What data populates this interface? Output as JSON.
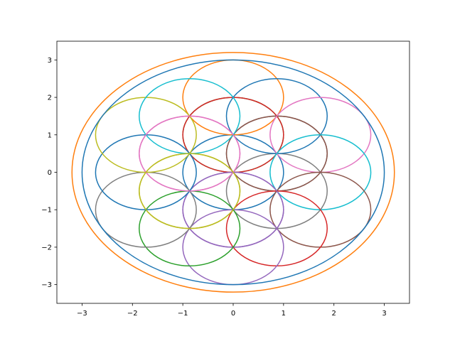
{
  "chart_data": {
    "type": "line",
    "title": "",
    "xlabel": "",
    "ylabel": "",
    "xlim": [
      -3.5,
      3.5
    ],
    "ylim": [
      -3.5,
      3.5
    ],
    "grid": false,
    "legend": "none",
    "x_ticks": [
      -3,
      -2,
      -1,
      0,
      1,
      2,
      3
    ],
    "y_ticks": [
      -3,
      -2,
      -1,
      0,
      1,
      2,
      3
    ],
    "x_tick_labels": [
      "−3",
      "−2",
      "−1",
      "0",
      "1",
      "2",
      "3"
    ],
    "y_tick_labels": [
      "−3",
      "−2",
      "−1",
      "0",
      "1",
      "2",
      "3"
    ],
    "series": [
      {
        "shape": "circle",
        "cx": 0,
        "cy": 0,
        "r": 1,
        "color": "#1f77b4"
      },
      {
        "shape": "circle",
        "cx": 0,
        "cy": 1,
        "r": 1,
        "color": "#2ca02c"
      },
      {
        "shape": "circle",
        "cx": 0.866,
        "cy": 0.5,
        "r": 1,
        "color": "#7f7f7f"
      },
      {
        "shape": "circle",
        "cx": 0.866,
        "cy": -0.5,
        "r": 1,
        "color": "#7f7f7f"
      },
      {
        "shape": "circle",
        "cx": 0,
        "cy": -1,
        "r": 1,
        "color": "#9467bd"
      },
      {
        "shape": "circle",
        "cx": -0.866,
        "cy": -0.5,
        "r": 1,
        "color": "#bcbd22"
      },
      {
        "shape": "circle",
        "cx": -0.866,
        "cy": 0.5,
        "r": 1,
        "color": "#e377c2"
      },
      {
        "shape": "circle",
        "cx": 0,
        "cy": 2,
        "r": 1,
        "color": "#ff7f0e"
      },
      {
        "shape": "circle",
        "cx": 0,
        "cy": 1,
        "r": 1,
        "color": "#d62728"
      },
      {
        "shape": "circle",
        "cx": 0.866,
        "cy": 1.5,
        "r": 1,
        "color": "#1f77b4"
      },
      {
        "shape": "circle",
        "cx": 0.866,
        "cy": 0.5,
        "r": 1,
        "color": "#8c564b"
      },
      {
        "shape": "circle",
        "cx": 1.732,
        "cy": 1,
        "r": 1,
        "color": "#e377c2"
      },
      {
        "shape": "circle",
        "cx": 1.732,
        "cy": 0,
        "r": 1,
        "color": "#17becf"
      },
      {
        "shape": "circle",
        "cx": 1.732,
        "cy": -1,
        "r": 1,
        "color": "#8c564b"
      },
      {
        "shape": "circle",
        "cx": 0.866,
        "cy": -1.5,
        "r": 1,
        "color": "#d62728"
      },
      {
        "shape": "circle",
        "cx": 0,
        "cy": -2,
        "r": 1,
        "color": "#9467bd"
      },
      {
        "shape": "circle",
        "cx": 0,
        "cy": -1,
        "r": 1,
        "color": "#9467bd"
      },
      {
        "shape": "circle",
        "cx": -0.866,
        "cy": -1.5,
        "r": 1,
        "color": "#2ca02c"
      },
      {
        "shape": "circle",
        "cx": -1.732,
        "cy": -1,
        "r": 1,
        "color": "#7f7f7f"
      },
      {
        "shape": "circle",
        "cx": -1.732,
        "cy": 0,
        "r": 1,
        "color": "#1f77b4"
      },
      {
        "shape": "circle",
        "cx": -1.732,
        "cy": 1,
        "r": 1,
        "color": "#bcbd22"
      },
      {
        "shape": "circle",
        "cx": -0.866,
        "cy": 1.5,
        "r": 1,
        "color": "#17becf"
      },
      {
        "shape": "circle",
        "cx": -0.866,
        "cy": 0.5,
        "r": 1,
        "color": "#e377c2"
      },
      {
        "shape": "circle",
        "cx": -0.866,
        "cy": -0.5,
        "r": 1,
        "color": "#bcbd22"
      },
      {
        "shape": "circle",
        "cx": 0,
        "cy": 0,
        "r": 3,
        "color": "#1f77b4"
      },
      {
        "shape": "circle",
        "cx": 0,
        "cy": 0,
        "r": 3.2,
        "color": "#ff7f0e"
      }
    ]
  }
}
